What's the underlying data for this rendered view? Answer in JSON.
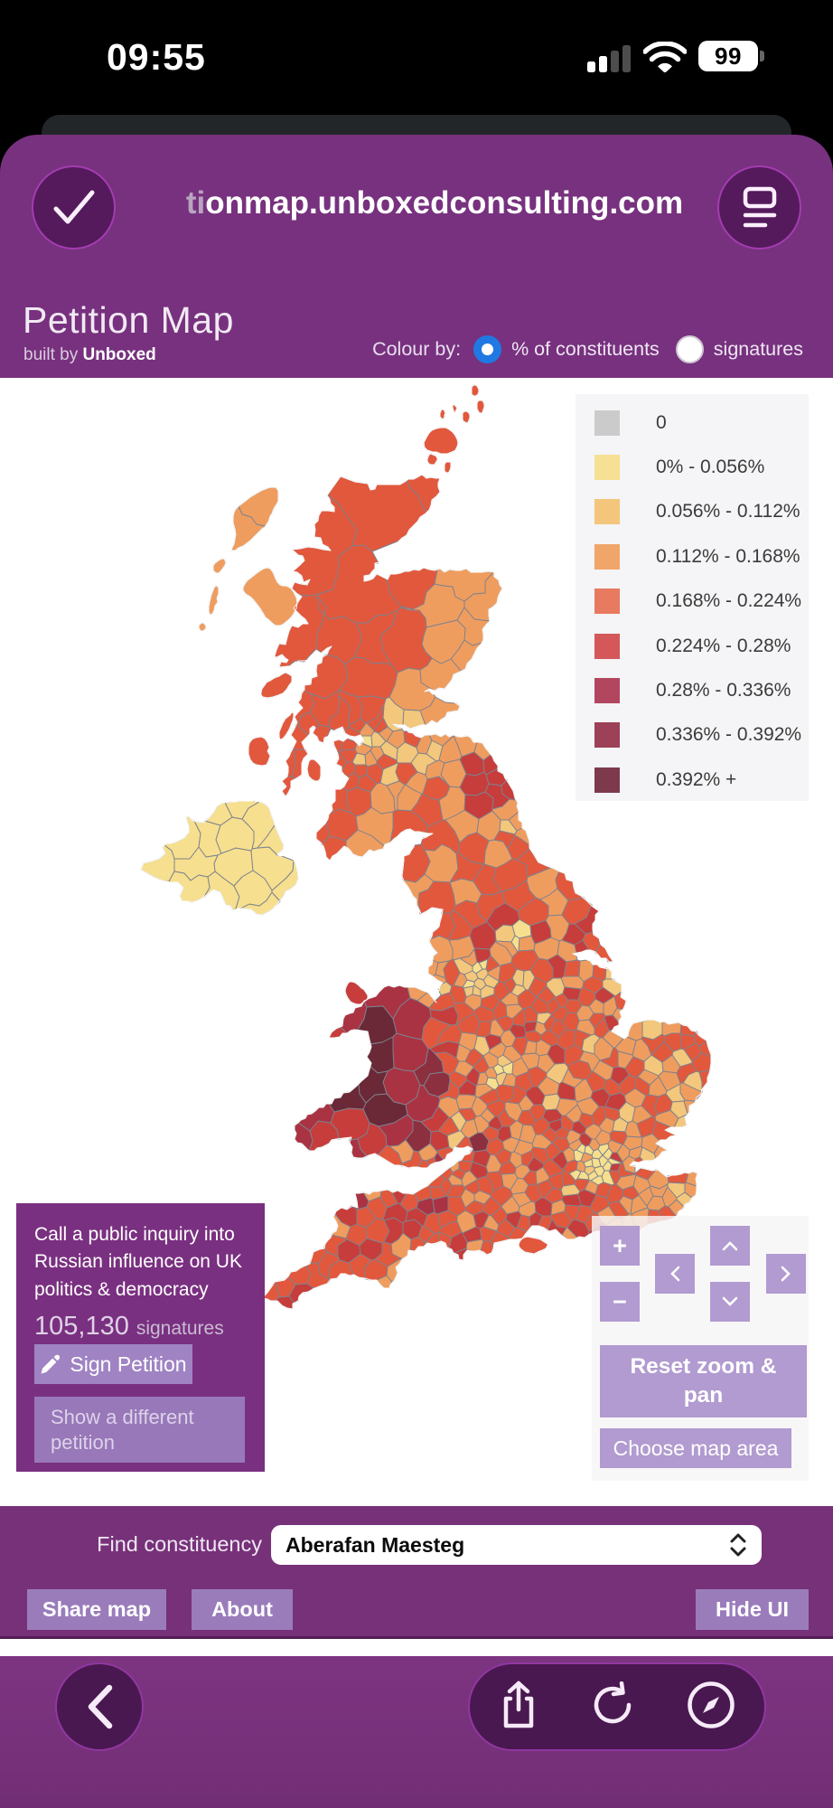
{
  "status_bar": {
    "time": "09:55",
    "battery_percent": "99"
  },
  "browser": {
    "url_faded": "ti",
    "url_rest": "onmap.unboxedconsulting.com"
  },
  "header": {
    "title": "Petition Map",
    "built_by": "built by",
    "built_by_brand": "Unboxed",
    "colour_by_label": "Colour by:",
    "radio_constituents": "% of constituents",
    "radio_signatures": "signatures",
    "radio_selected": "% of constituents"
  },
  "legend": {
    "entries": [
      {
        "label": "0",
        "color": "#cbcbcb"
      },
      {
        "label": "0% - 0.056%",
        "color": "#f6e094"
      },
      {
        "label": "0.056% - 0.112%",
        "color": "#f3c67b"
      },
      {
        "label": "0.112% - 0.168%",
        "color": "#f0a569"
      },
      {
        "label": "0.168% - 0.224%",
        "color": "#e87a60"
      },
      {
        "label": "0.224% - 0.28%",
        "color": "#d4575a"
      },
      {
        "label": "0.28% - 0.336%",
        "color": "#b3465f"
      },
      {
        "label": "0.336% - 0.392%",
        "color": "#9c4157"
      },
      {
        "label": "0.392% +",
        "color": "#7d3a4d"
      }
    ]
  },
  "petition": {
    "title": "Call a public inquiry into Russian influence on UK politics & democracy",
    "signature_count": "105,130",
    "signatures_word": "signatures",
    "sign_button": "Sign Petition",
    "different_button": "Show a different petition"
  },
  "map_controls": {
    "zoom_in": "+",
    "zoom_out": "−",
    "reset_button": "Reset zoom & pan",
    "choose_area_button": "Choose map area"
  },
  "bottom_bar": {
    "find_label": "Find constituency",
    "selected_constituency": "Aberafan Maesteg",
    "share_button": "Share map",
    "about_button": "About",
    "hide_button": "Hide UI"
  },
  "map": {
    "name": "UK parliamentary constituencies choropleth",
    "colour_metric": "% of constituents"
  }
}
